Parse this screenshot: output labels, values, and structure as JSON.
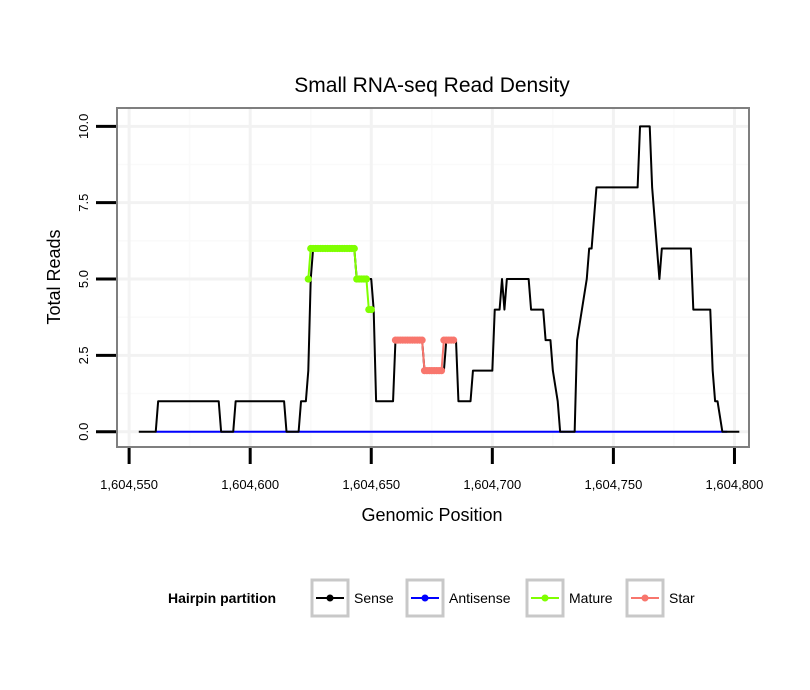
{
  "chart_data": {
    "type": "line",
    "title": "Small RNA-seq Read Density",
    "xlabel": "Genomic Position",
    "ylabel": "Total Reads",
    "xlim": [
      1604545,
      1604806
    ],
    "ylim": [
      -0.5,
      10.6
    ],
    "x_ticks": [
      1604550,
      1604600,
      1604650,
      1604700,
      1604750,
      1604800
    ],
    "x_tick_labels": [
      "1,604,550",
      "1,604,600",
      "1,604,650",
      "1,604,700",
      "1,604,750",
      "1,604,800"
    ],
    "y_ticks": [
      0,
      2.5,
      5,
      7.5,
      10
    ],
    "y_tick_labels": [
      "0.0",
      "2.5",
      "5.0",
      "7.5",
      "10.0"
    ],
    "grid": true,
    "legend": {
      "title": "Hairpin partition",
      "position": "bottom",
      "entries": [
        "Sense",
        "Antisense",
        "Mature",
        "Star"
      ]
    },
    "series": [
      {
        "name": "Sense",
        "color": "#000000",
        "style": "line",
        "x": [
          1604554,
          1604561,
          1604562,
          1604587,
          1604588,
          1604593,
          1604594,
          1604614,
          1604615,
          1604620,
          1604621,
          1604623,
          1604624,
          1604625,
          1604626,
          1604643,
          1604644,
          1604650,
          1604651,
          1604652,
          1604659,
          1604660,
          1604661,
          1604671,
          1604672,
          1604680,
          1604681,
          1604685,
          1604686,
          1604691,
          1604692,
          1604700,
          1604701,
          1604703,
          1604704,
          1604705,
          1604706,
          1604715,
          1604716,
          1604721,
          1604722,
          1604724,
          1604725,
          1604727,
          1604728,
          1604734,
          1604735,
          1604739,
          1604740,
          1604741,
          1604742,
          1604743,
          1604744,
          1604745,
          1604746,
          1604747,
          1604748,
          1604759,
          1604760,
          1604761,
          1604762,
          1604765,
          1604766,
          1604768,
          1604769,
          1604770,
          1604771,
          1604782,
          1604783,
          1604790,
          1604791,
          1604792,
          1604793,
          1604795,
          1604797,
          1604802
        ],
        "y": [
          0,
          0,
          1,
          1,
          0,
          0,
          1,
          1,
          0,
          0,
          1,
          1,
          2,
          5,
          6,
          6,
          5,
          5,
          4,
          1,
          1,
          3,
          3,
          3,
          2,
          2,
          3,
          3,
          1,
          1,
          2,
          2,
          4,
          4,
          5,
          4,
          5,
          5,
          4,
          4,
          3,
          3,
          2,
          1,
          0,
          0,
          3,
          5,
          6,
          6,
          7,
          8,
          8,
          8,
          8,
          8,
          8,
          8,
          8,
          10,
          10,
          10,
          8,
          6,
          5,
          6,
          6,
          6,
          4,
          4,
          2,
          1,
          1,
          0,
          0,
          0
        ]
      },
      {
        "name": "Antisense",
        "color": "#0000ff",
        "style": "line",
        "x": [
          1604561,
          1604797
        ],
        "y": [
          0,
          0
        ]
      },
      {
        "name": "Mature",
        "color": "#7fff00",
        "style": "line+points",
        "x": [
          1604624,
          1604625,
          1604626,
          1604627,
          1604628,
          1604629,
          1604630,
          1604631,
          1604632,
          1604633,
          1604634,
          1604635,
          1604636,
          1604637,
          1604638,
          1604639,
          1604640,
          1604641,
          1604642,
          1604643,
          1604644,
          1604645,
          1604646,
          1604647,
          1604648,
          1604649,
          1604650
        ],
        "y": [
          5,
          6,
          6,
          6,
          6,
          6,
          6,
          6,
          6,
          6,
          6,
          6,
          6,
          6,
          6,
          6,
          6,
          6,
          6,
          6,
          5,
          5,
          5,
          5,
          5,
          4,
          4
        ]
      },
      {
        "name": "Star",
        "color": "#f8766d",
        "style": "line+points",
        "x": [
          1604660,
          1604661,
          1604662,
          1604663,
          1604664,
          1604665,
          1604666,
          1604667,
          1604668,
          1604669,
          1604670,
          1604671,
          1604672,
          1604673,
          1604674,
          1604675,
          1604676,
          1604677,
          1604678,
          1604679,
          1604680,
          1604681,
          1604682,
          1604683,
          1604684
        ],
        "y": [
          3,
          3,
          3,
          3,
          3,
          3,
          3,
          3,
          3,
          3,
          3,
          3,
          2,
          2,
          2,
          2,
          2,
          2,
          2,
          2,
          3,
          3,
          3,
          3,
          3
        ]
      }
    ]
  }
}
